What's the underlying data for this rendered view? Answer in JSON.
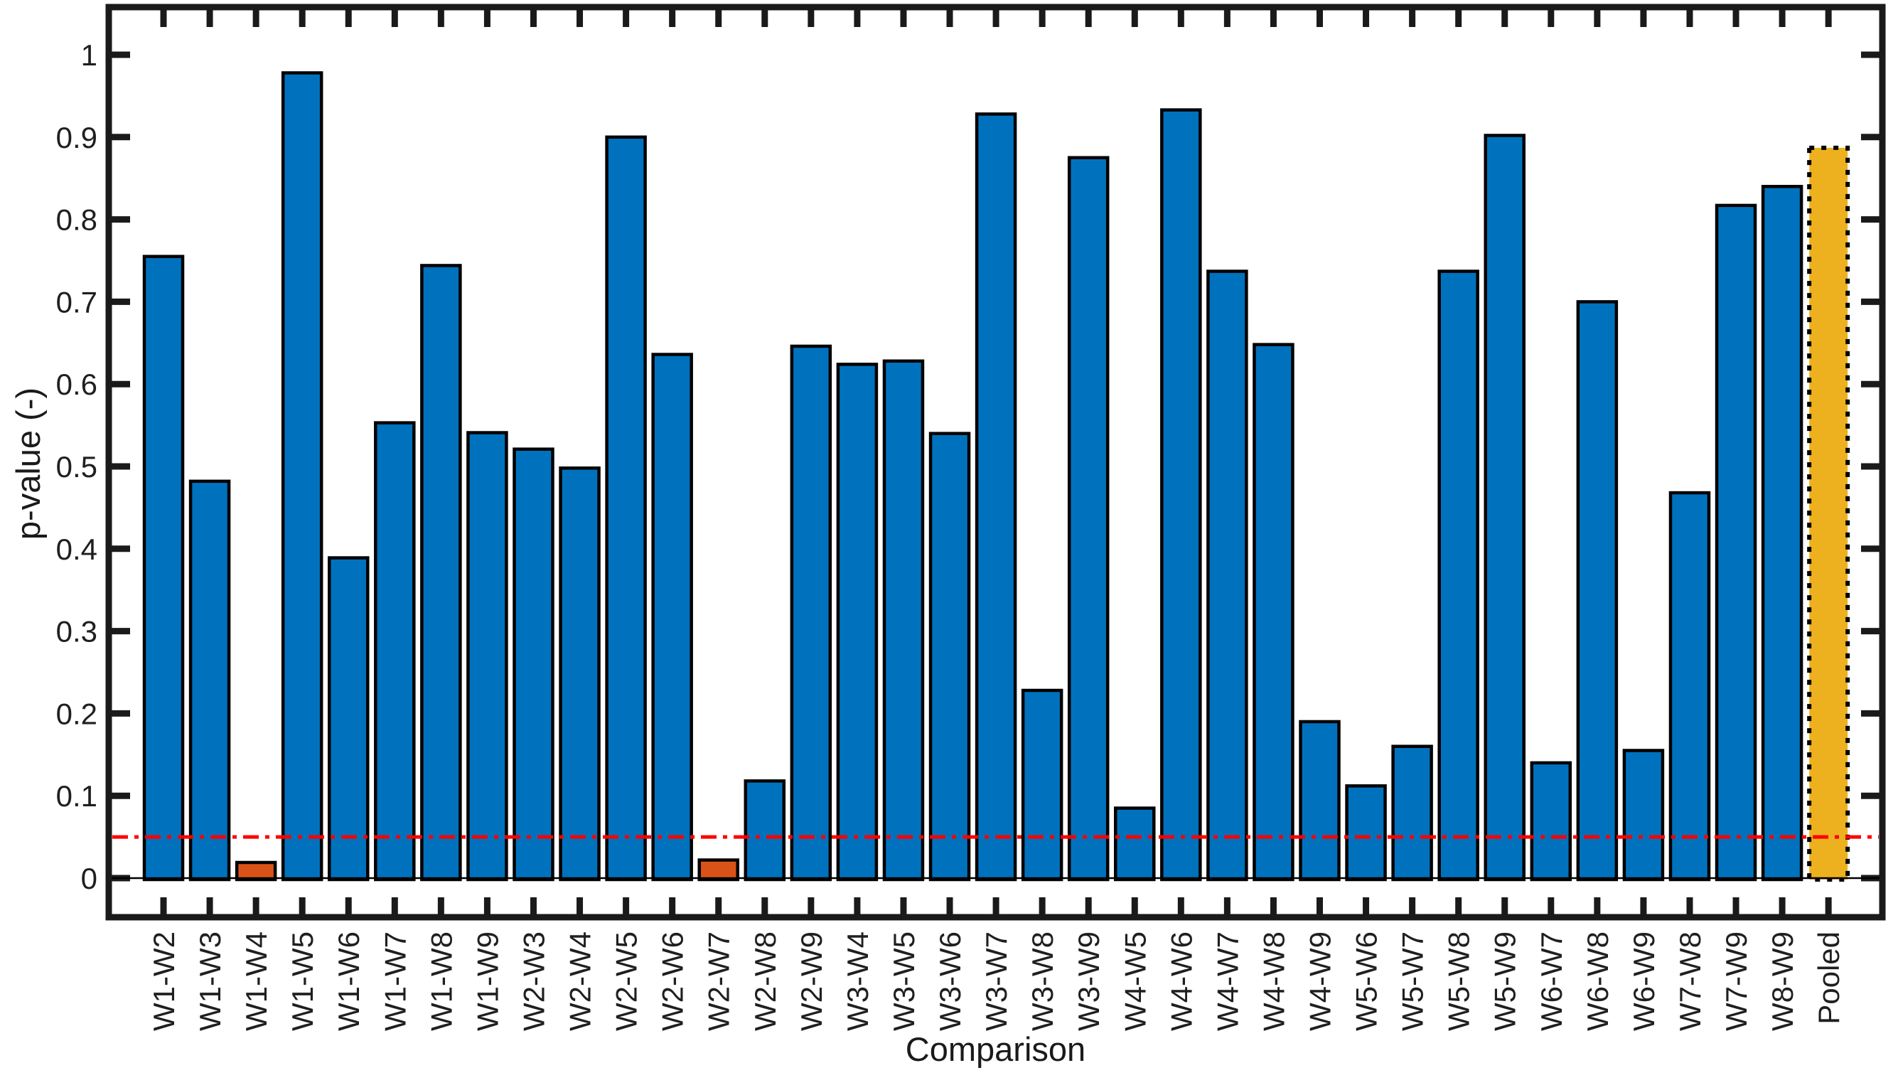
{
  "chart_data": {
    "type": "bar",
    "title": "",
    "xlabel": "Comparison",
    "ylabel": "p-value (-)",
    "categories": [
      "W1-W2",
      "W1-W3",
      "W1-W4",
      "W1-W5",
      "W1-W6",
      "W1-W7",
      "W1-W8",
      "W1-W9",
      "W2-W3",
      "W2-W4",
      "W2-W5",
      "W2-W6",
      "W2-W7",
      "W2-W8",
      "W2-W9",
      "W3-W4",
      "W3-W5",
      "W3-W6",
      "W3-W7",
      "W3-W8",
      "W3-W9",
      "W4-W5",
      "W4-W6",
      "W4-W7",
      "W4-W8",
      "W4-W9",
      "W5-W6",
      "W5-W7",
      "W5-W8",
      "W5-W9",
      "W6-W7",
      "W6-W8",
      "W6-W9",
      "W7-W8",
      "W7-W9",
      "W8-W9",
      "Pooled"
    ],
    "values": [
      0.755,
      0.482,
      0.019,
      0.978,
      0.389,
      0.553,
      0.744,
      0.541,
      0.521,
      0.498,
      0.9,
      0.636,
      0.022,
      0.118,
      0.646,
      0.624,
      0.628,
      0.54,
      0.928,
      0.228,
      0.875,
      0.085,
      0.933,
      0.737,
      0.648,
      0.19,
      0.112,
      0.16,
      0.737,
      0.902,
      0.14,
      0.7,
      0.155,
      0.468,
      0.817,
      0.84,
      0.887
    ],
    "bar_styles": [
      "default",
      "default",
      "significant",
      "default",
      "default",
      "default",
      "default",
      "default",
      "default",
      "default",
      "default",
      "default",
      "significant",
      "default",
      "default",
      "default",
      "default",
      "default",
      "default",
      "default",
      "default",
      "default",
      "default",
      "default",
      "default",
      "default",
      "default",
      "default",
      "default",
      "default",
      "default",
      "default",
      "default",
      "default",
      "default",
      "default",
      "pooled"
    ],
    "threshold_line": {
      "value": 0.05,
      "color": "#FF0000",
      "style": "dash-dot"
    },
    "ylim": [
      -0.05,
      1.05
    ],
    "yticks": [
      0,
      0.1,
      0.2,
      0.3,
      0.4,
      0.5,
      0.6,
      0.7,
      0.8,
      0.9,
      1
    ],
    "ytick_labels": [
      "0",
      "0.1",
      "0.2",
      "0.3",
      "0.4",
      "0.5",
      "0.6",
      "0.7",
      "0.8",
      "0.9",
      "1"
    ],
    "grid": false,
    "legend": null,
    "colors": {
      "default_bar": "#0072BD",
      "significant_bar": "#D95319",
      "pooled_bar": "#EDB120",
      "bar_outline": "#000000",
      "axis": "#1a1a1a",
      "tick_text": "#1f1f1f",
      "background": "#FFFFFF"
    }
  }
}
